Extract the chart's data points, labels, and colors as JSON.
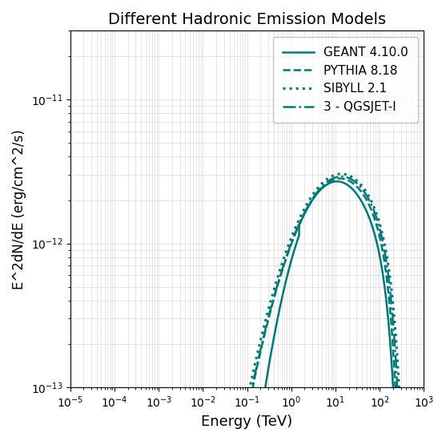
{
  "title": "Different Hadronic Emission Models",
  "xlabel": "Energy (TeV)",
  "ylabel": "E^2dN/dE (erg/cm^2/s)",
  "xlim": [
    1e-05,
    1000.0
  ],
  "ylim": [
    1e-13,
    3e-11
  ],
  "color": "#007878",
  "legend": [
    {
      "label": "GEANT 4.10.0",
      "linestyle": "solid"
    },
    {
      "label": "PYTHIA 8.18",
      "linestyle": "dashed"
    },
    {
      "label": "SIBYLL 2.1",
      "linestyle": "dotted"
    },
    {
      "label": "3 - QGSJET-I",
      "linestyle": "dashdot"
    }
  ]
}
